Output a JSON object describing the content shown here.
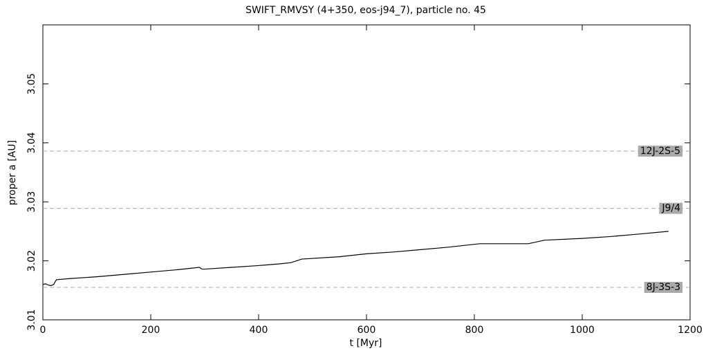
{
  "chart_data": {
    "type": "line",
    "title": "SWIFT_RMVSY (4+350, eos-j94_7), particle no. 45",
    "x_label": "t [Myr]",
    "y_label": "proper a [AU]",
    "x": [
      0,
      5,
      10,
      15,
      20,
      25,
      50,
      100,
      150,
      200,
      250,
      290,
      295,
      300,
      350,
      400,
      440,
      460,
      480,
      550,
      600,
      650,
      700,
      750,
      810,
      850,
      900,
      930,
      1000,
      1050,
      1100,
      1160
    ],
    "series": [
      {
        "name": "proper a",
        "color": "#000000",
        "values": [
          3.016,
          3.0161,
          3.0159,
          3.0158,
          3.016,
          3.0168,
          3.017,
          3.0173,
          3.0177,
          3.0181,
          3.0185,
          3.0189,
          3.0186,
          3.0186,
          3.0189,
          3.0192,
          3.0195,
          3.0197,
          3.0203,
          3.0207,
          3.0212,
          3.0215,
          3.0219,
          3.0223,
          3.0229,
          3.0229,
          3.0229,
          3.0235,
          3.0238,
          3.0241,
          3.0245,
          3.025
        ]
      }
    ],
    "reference_lines": [
      {
        "value": 3.0386,
        "label": "12J-2S-5"
      },
      {
        "value": 3.0289,
        "label": "J9/4"
      },
      {
        "value": 3.0155,
        "label": "8J-3S-3"
      }
    ],
    "reference_color": "#aaaaaa",
    "xlim": [
      0,
      1200
    ],
    "xticks": [
      0,
      200,
      400,
      600,
      800,
      1000,
      1200
    ],
    "ylim": [
      3.01,
      3.06
    ],
    "yticks": [
      3.01,
      3.02,
      3.03,
      3.04,
      3.05
    ]
  }
}
